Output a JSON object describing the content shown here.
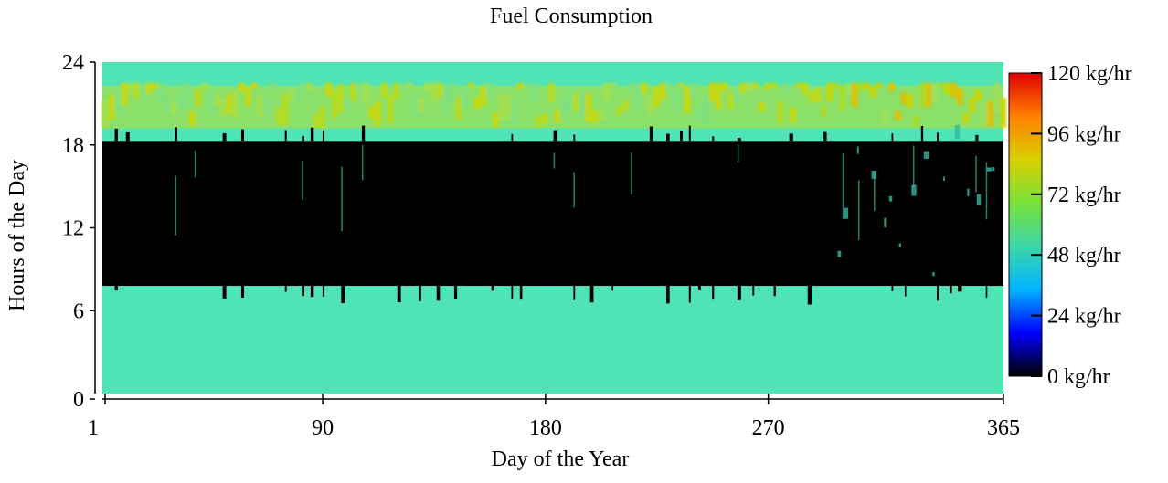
{
  "chart_data": {
    "type": "heatmap",
    "title": "Fuel Consumption",
    "xlabel": "Day of the Year",
    "ylabel": "Hours of the Day",
    "xlim": [
      1,
      365
    ],
    "ylim": [
      0,
      24
    ],
    "xticks": [
      1,
      90,
      180,
      270,
      365
    ],
    "yticks": [
      0,
      6,
      12,
      18,
      24
    ],
    "colorbar": {
      "range": [
        0,
        120
      ],
      "unit": "kg/hr",
      "ticks": [
        "0 kg/hr",
        "24 kg/hr",
        "48 kg/hr",
        "72 kg/hr",
        "96 kg/hr",
        "120 kg/hr"
      ],
      "colors": [
        "#000000",
        "#0000ff",
        "#00b4ff",
        "#3cd6a8",
        "#78e03a",
        "#d8d000",
        "#ff8000",
        "#e00000"
      ]
    },
    "bands": [
      {
        "hours": [
          0,
          7.8
        ],
        "level_kg_hr": 38,
        "color": "#4fe3b6"
      },
      {
        "hours": [
          7.8,
          18.3
        ],
        "level_kg_hr": 0,
        "color": "#000000"
      },
      {
        "hours": [
          18.3,
          19.2
        ],
        "level_kg_hr": 38,
        "color": "#4fe3b6"
      },
      {
        "hours": [
          19.2,
          22.3
        ],
        "level_kg_hr": 60,
        "color": "#8be06a"
      },
      {
        "hours": [
          22.3,
          24
        ],
        "level_kg_hr": 38,
        "color": "#4fe3b6"
      }
    ]
  }
}
